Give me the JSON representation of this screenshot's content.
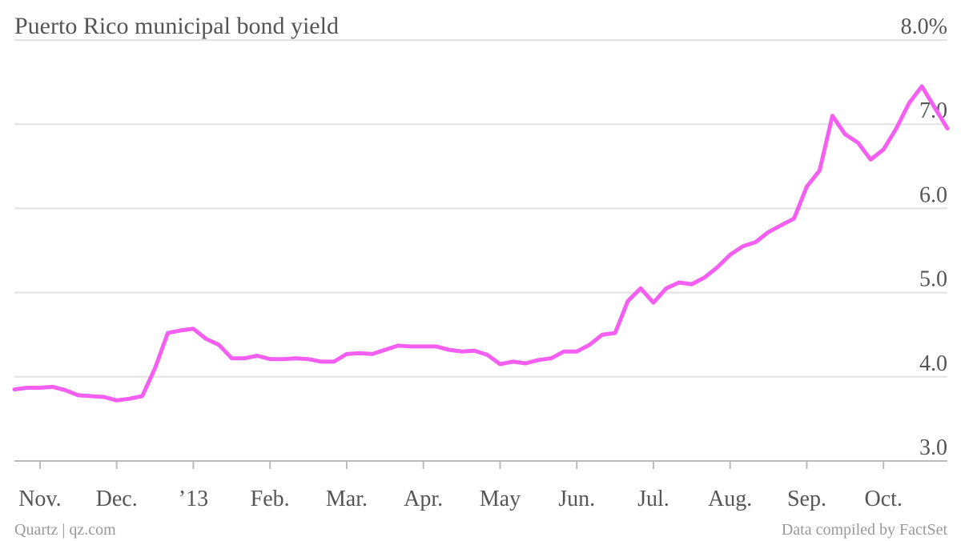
{
  "chart_data": {
    "type": "line",
    "title": "Puerto Rico municipal bond yield",
    "source": "Quartz | qz.com",
    "note": "Data compiled by FactSet",
    "categories": [
      null,
      null,
      "Nov.",
      null,
      null,
      null,
      null,
      null,
      "Dec.",
      null,
      null,
      null,
      null,
      null,
      "’13",
      null,
      null,
      null,
      null,
      null,
      "Feb.",
      null,
      null,
      null,
      null,
      null,
      "Mar.",
      null,
      null,
      null,
      null,
      null,
      "Apr.",
      null,
      null,
      null,
      null,
      null,
      "May",
      null,
      null,
      null,
      null,
      null,
      "Jun.",
      null,
      null,
      null,
      null,
      null,
      "Jul.",
      null,
      null,
      null,
      null,
      null,
      "Aug.",
      null,
      null,
      null,
      null,
      null,
      "Sep.",
      null,
      null,
      null,
      null,
      null,
      "Oct.",
      null,
      null,
      null,
      null,
      null
    ],
    "series": [
      {
        "name": "Puerto Rico municipal bond yield",
        "color": "#f45ef1",
        "values": [
          3.85,
          3.87,
          3.87,
          3.88,
          3.84,
          3.78,
          3.77,
          3.76,
          3.72,
          3.74,
          3.77,
          4.1,
          4.52,
          4.55,
          4.57,
          4.45,
          4.38,
          4.22,
          4.22,
          4.25,
          4.21,
          4.21,
          4.22,
          4.21,
          4.18,
          4.18,
          4.27,
          4.28,
          4.27,
          4.32,
          4.37,
          4.36,
          4.36,
          4.36,
          4.32,
          4.3,
          4.31,
          4.26,
          4.15,
          4.18,
          4.16,
          4.2,
          4.22,
          4.3,
          4.3,
          4.38,
          4.5,
          4.52,
          4.9,
          5.05,
          4.88,
          5.05,
          5.12,
          5.1,
          5.18,
          5.3,
          5.45,
          5.55,
          5.6,
          5.72,
          5.8,
          5.88,
          6.26,
          6.45,
          7.1,
          6.88,
          6.78,
          6.58,
          6.7,
          6.95,
          7.25,
          7.45,
          7.2,
          6.95
        ]
      }
    ],
    "ylim": [
      3,
      8
    ],
    "yticks": [
      {
        "value": 3,
        "label": "3.0"
      },
      {
        "value": 4,
        "label": "4.0"
      },
      {
        "value": 5,
        "label": "5.0"
      },
      {
        "value": 6,
        "label": "6.0"
      },
      {
        "value": 7,
        "label": "7.0"
      },
      {
        "value": 8,
        "label": "8.0%"
      }
    ],
    "grid": true
  }
}
